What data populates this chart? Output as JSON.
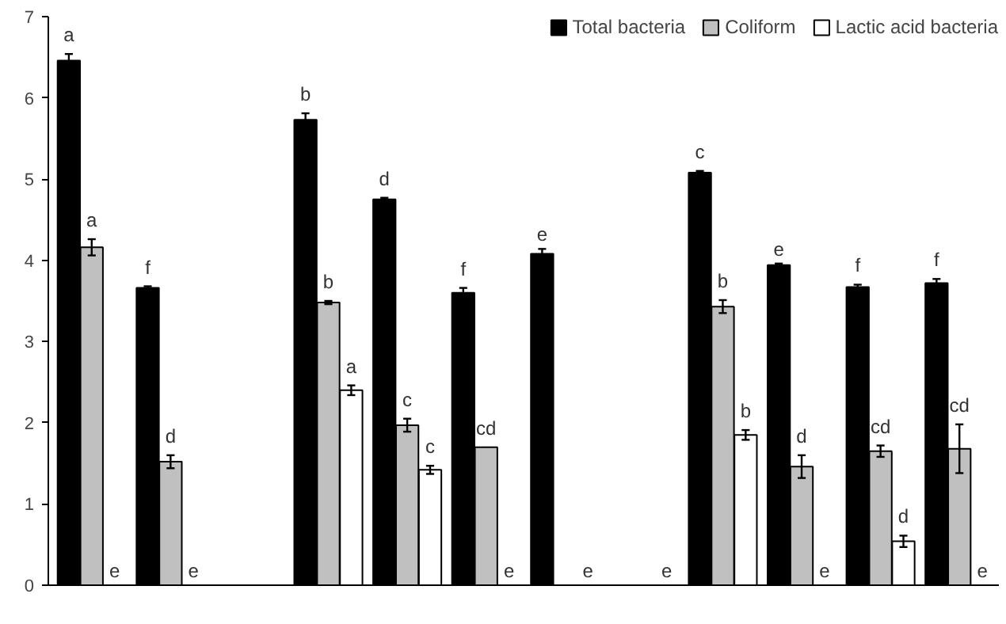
{
  "chart_data": {
    "type": "bar",
    "categories": [
      null,
      null,
      null,
      null,
      null,
      null,
      null,
      null,
      null,
      null,
      null,
      null
    ],
    "ylim": [
      0,
      7
    ],
    "yticks": [
      0,
      1,
      2,
      3,
      4,
      5,
      6,
      7
    ],
    "grid": false,
    "legend": "top right",
    "series": [
      {
        "name": "Total bacteria",
        "color": "#000000",
        "values": [
          6.46,
          3.66,
          null,
          5.73,
          4.75,
          3.6,
          4.08,
          null,
          5.08,
          3.94,
          3.67,
          3.72
        ],
        "errors": [
          0.08,
          0.02,
          null,
          0.08,
          0.02,
          0.06,
          0.06,
          null,
          0.02,
          0.02,
          0.03,
          0.05
        ],
        "value_labels": [
          "a",
          "f",
          null,
          "b",
          "d",
          "f",
          "e",
          null,
          "c",
          "e",
          "f",
          "f"
        ]
      },
      {
        "name": "Coliform",
        "color": "#c0c0c0",
        "values": [
          4.16,
          1.52,
          null,
          3.48,
          1.97,
          1.7,
          null,
          null,
          3.43,
          1.46,
          1.65,
          1.68
        ],
        "errors": [
          0.1,
          0.08,
          null,
          0.02,
          0.08,
          null,
          null,
          null,
          0.08,
          0.14,
          0.07,
          0.3
        ],
        "value_labels": [
          "a",
          "d",
          null,
          "b",
          "c",
          "cd",
          null,
          null,
          "b",
          "d",
          "cd",
          "cd"
        ]
      },
      {
        "name": "Lactic acid bacteria",
        "color": "#ffffff",
        "values": [
          0,
          0,
          null,
          2.4,
          1.42,
          0,
          0,
          0,
          1.85,
          0,
          0.54,
          0
        ],
        "errors": [
          null,
          null,
          null,
          0.06,
          0.05,
          null,
          null,
          null,
          0.06,
          null,
          0.07,
          null
        ],
        "value_labels": [
          "e",
          "e",
          null,
          "a",
          "c",
          "e",
          "e",
          "e",
          "b",
          "e",
          "d",
          "e"
        ]
      }
    ]
  }
}
